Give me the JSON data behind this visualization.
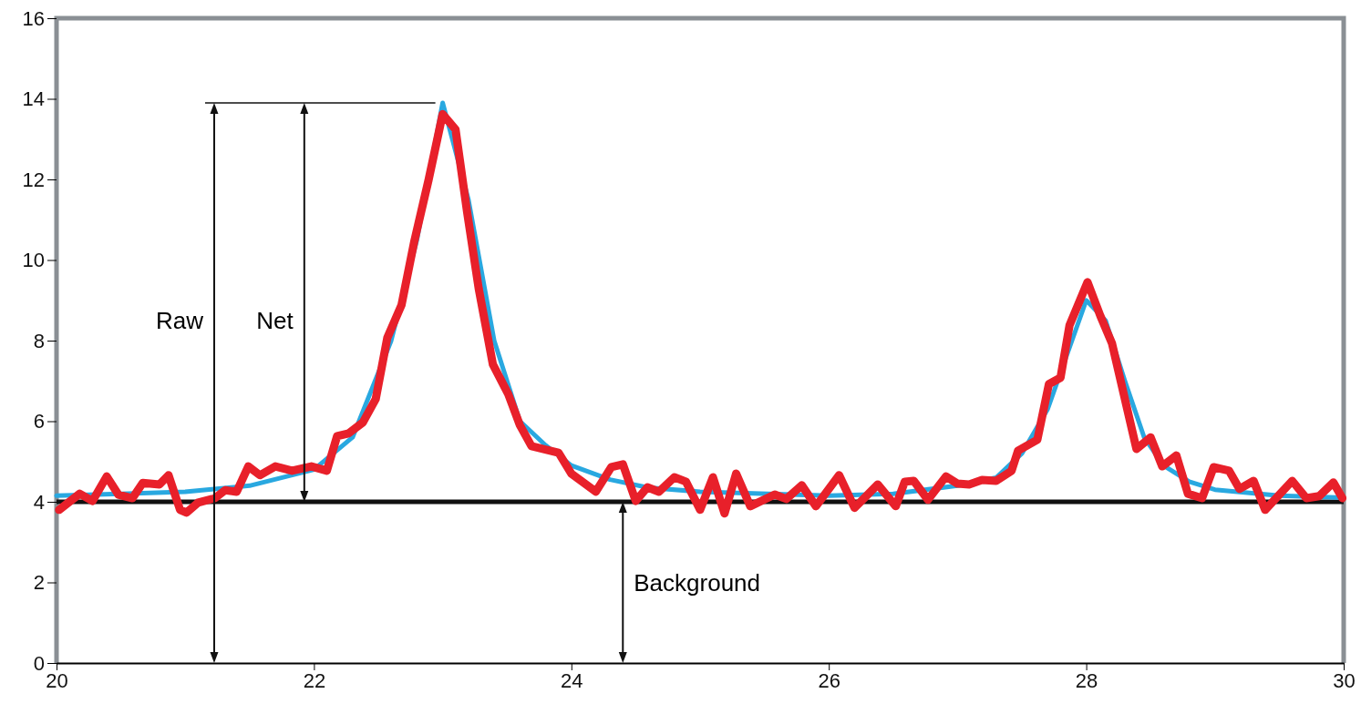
{
  "chart_data": {
    "type": "line",
    "xlim": [
      20,
      30
    ],
    "xticks": [
      20,
      22,
      24,
      26,
      28,
      30
    ],
    "ylim": [
      0,
      16
    ],
    "yticks": [
      0,
      2,
      4,
      6,
      8,
      10,
      12,
      14,
      16
    ],
    "grid": false,
    "marker": "none",
    "line_style": "solid",
    "series": [
      {
        "color": "#29a8e0",
        "x": [
          20,
          20.5,
          21,
          21.5,
          22,
          22.3,
          22.6,
          22.8,
          23,
          23.2,
          23.4,
          23.6,
          23.8,
          24,
          24.3,
          24.6,
          25,
          26,
          26.5,
          27,
          27.3,
          27.5,
          27.7,
          27.85,
          28,
          28.15,
          28.3,
          28.45,
          28.6,
          28.8,
          29,
          29.5,
          30
        ],
        "values": [
          4.15,
          4.2,
          4.25,
          4.4,
          4.8,
          5.6,
          8,
          10.5,
          13.9,
          11.5,
          8,
          6,
          5.4,
          4.9,
          4.55,
          4.35,
          4.25,
          4.15,
          4.2,
          4.4,
          4.6,
          5.2,
          6.3,
          null,
          9,
          8.5,
          7,
          5.6,
          4.9,
          4.5,
          4.3,
          4.15,
          4.1
        ]
      },
      {
        "color": "#e8202a",
        "x": [
          20.02,
          20.18,
          20.28,
          20.39,
          20.48,
          20.59,
          20.67,
          20.8,
          20.87,
          20.96,
          21.01,
          21.1,
          21.23,
          21.31,
          21.4,
          21.49,
          21.58,
          21.7,
          21.83,
          21.98,
          22.1,
          22.18,
          22.27,
          22.38,
          22.48,
          22.57,
          22.68,
          22.78,
          22.89,
          23,
          23.1,
          23.19,
          23.28,
          23.39,
          23.51,
          23.6,
          23.69,
          23.9,
          24,
          24.19,
          24.31,
          24.4,
          24.5,
          24.59,
          24.68,
          24.8,
          24.89,
          25,
          25.1,
          25.19,
          25.28,
          25.39,
          25.58,
          25.67,
          25.79,
          25.9,
          26.08,
          26.2,
          26.38,
          26.52,
          26.59,
          26.66,
          26.77,
          26.91,
          27,
          27.09,
          27.19,
          27.3,
          27.42,
          27.47,
          27.62,
          27.71,
          27.8,
          27.87,
          28.01,
          28.11,
          28.2,
          28.39,
          28.5,
          28.59,
          28.7,
          28.79,
          28.9,
          28.99,
          29.11,
          29.19,
          29.3,
          29.39,
          29.6,
          29.71,
          29.81,
          29.92,
          29.99
        ],
        "values": [
          3.8,
          4.2,
          4.02,
          4.63,
          4.18,
          4.09,
          4.47,
          4.43,
          4.66,
          3.8,
          3.73,
          3.98,
          4.09,
          4.29,
          4.25,
          4.88,
          4.66,
          4.88,
          4.77,
          4.88,
          4.77,
          5.63,
          5.7,
          5.97,
          6.55,
          8.07,
          8.88,
          10.47,
          11.98,
          13.62,
          13.24,
          11.19,
          9.29,
          7.41,
          6.67,
          5.9,
          5.38,
          5.22,
          4.7,
          4.25,
          4.86,
          4.93,
          4.02,
          4.36,
          4.25,
          4.61,
          4.5,
          3.8,
          4.61,
          3.71,
          4.7,
          3.89,
          4.18,
          4.07,
          4.41,
          3.89,
          4.66,
          3.85,
          4.43,
          3.89,
          4.5,
          4.52,
          4.05,
          4.63,
          4.45,
          4.43,
          4.54,
          4.52,
          4.77,
          5.27,
          5.54,
          6.92,
          7.08,
          8.38,
          9.45,
          8.61,
          7.93,
          5.31,
          5.6,
          4.88,
          5.15,
          4.2,
          4.09,
          4.86,
          4.77,
          4.32,
          4.52,
          3.8,
          4.52,
          4.09,
          4.14,
          4.48,
          4.09
        ]
      }
    ],
    "ref_lines": [
      {
        "axis": "y",
        "value": 4,
        "color": "#111111"
      }
    ],
    "annotations": [
      "Raw",
      "Net",
      "Background"
    ]
  }
}
